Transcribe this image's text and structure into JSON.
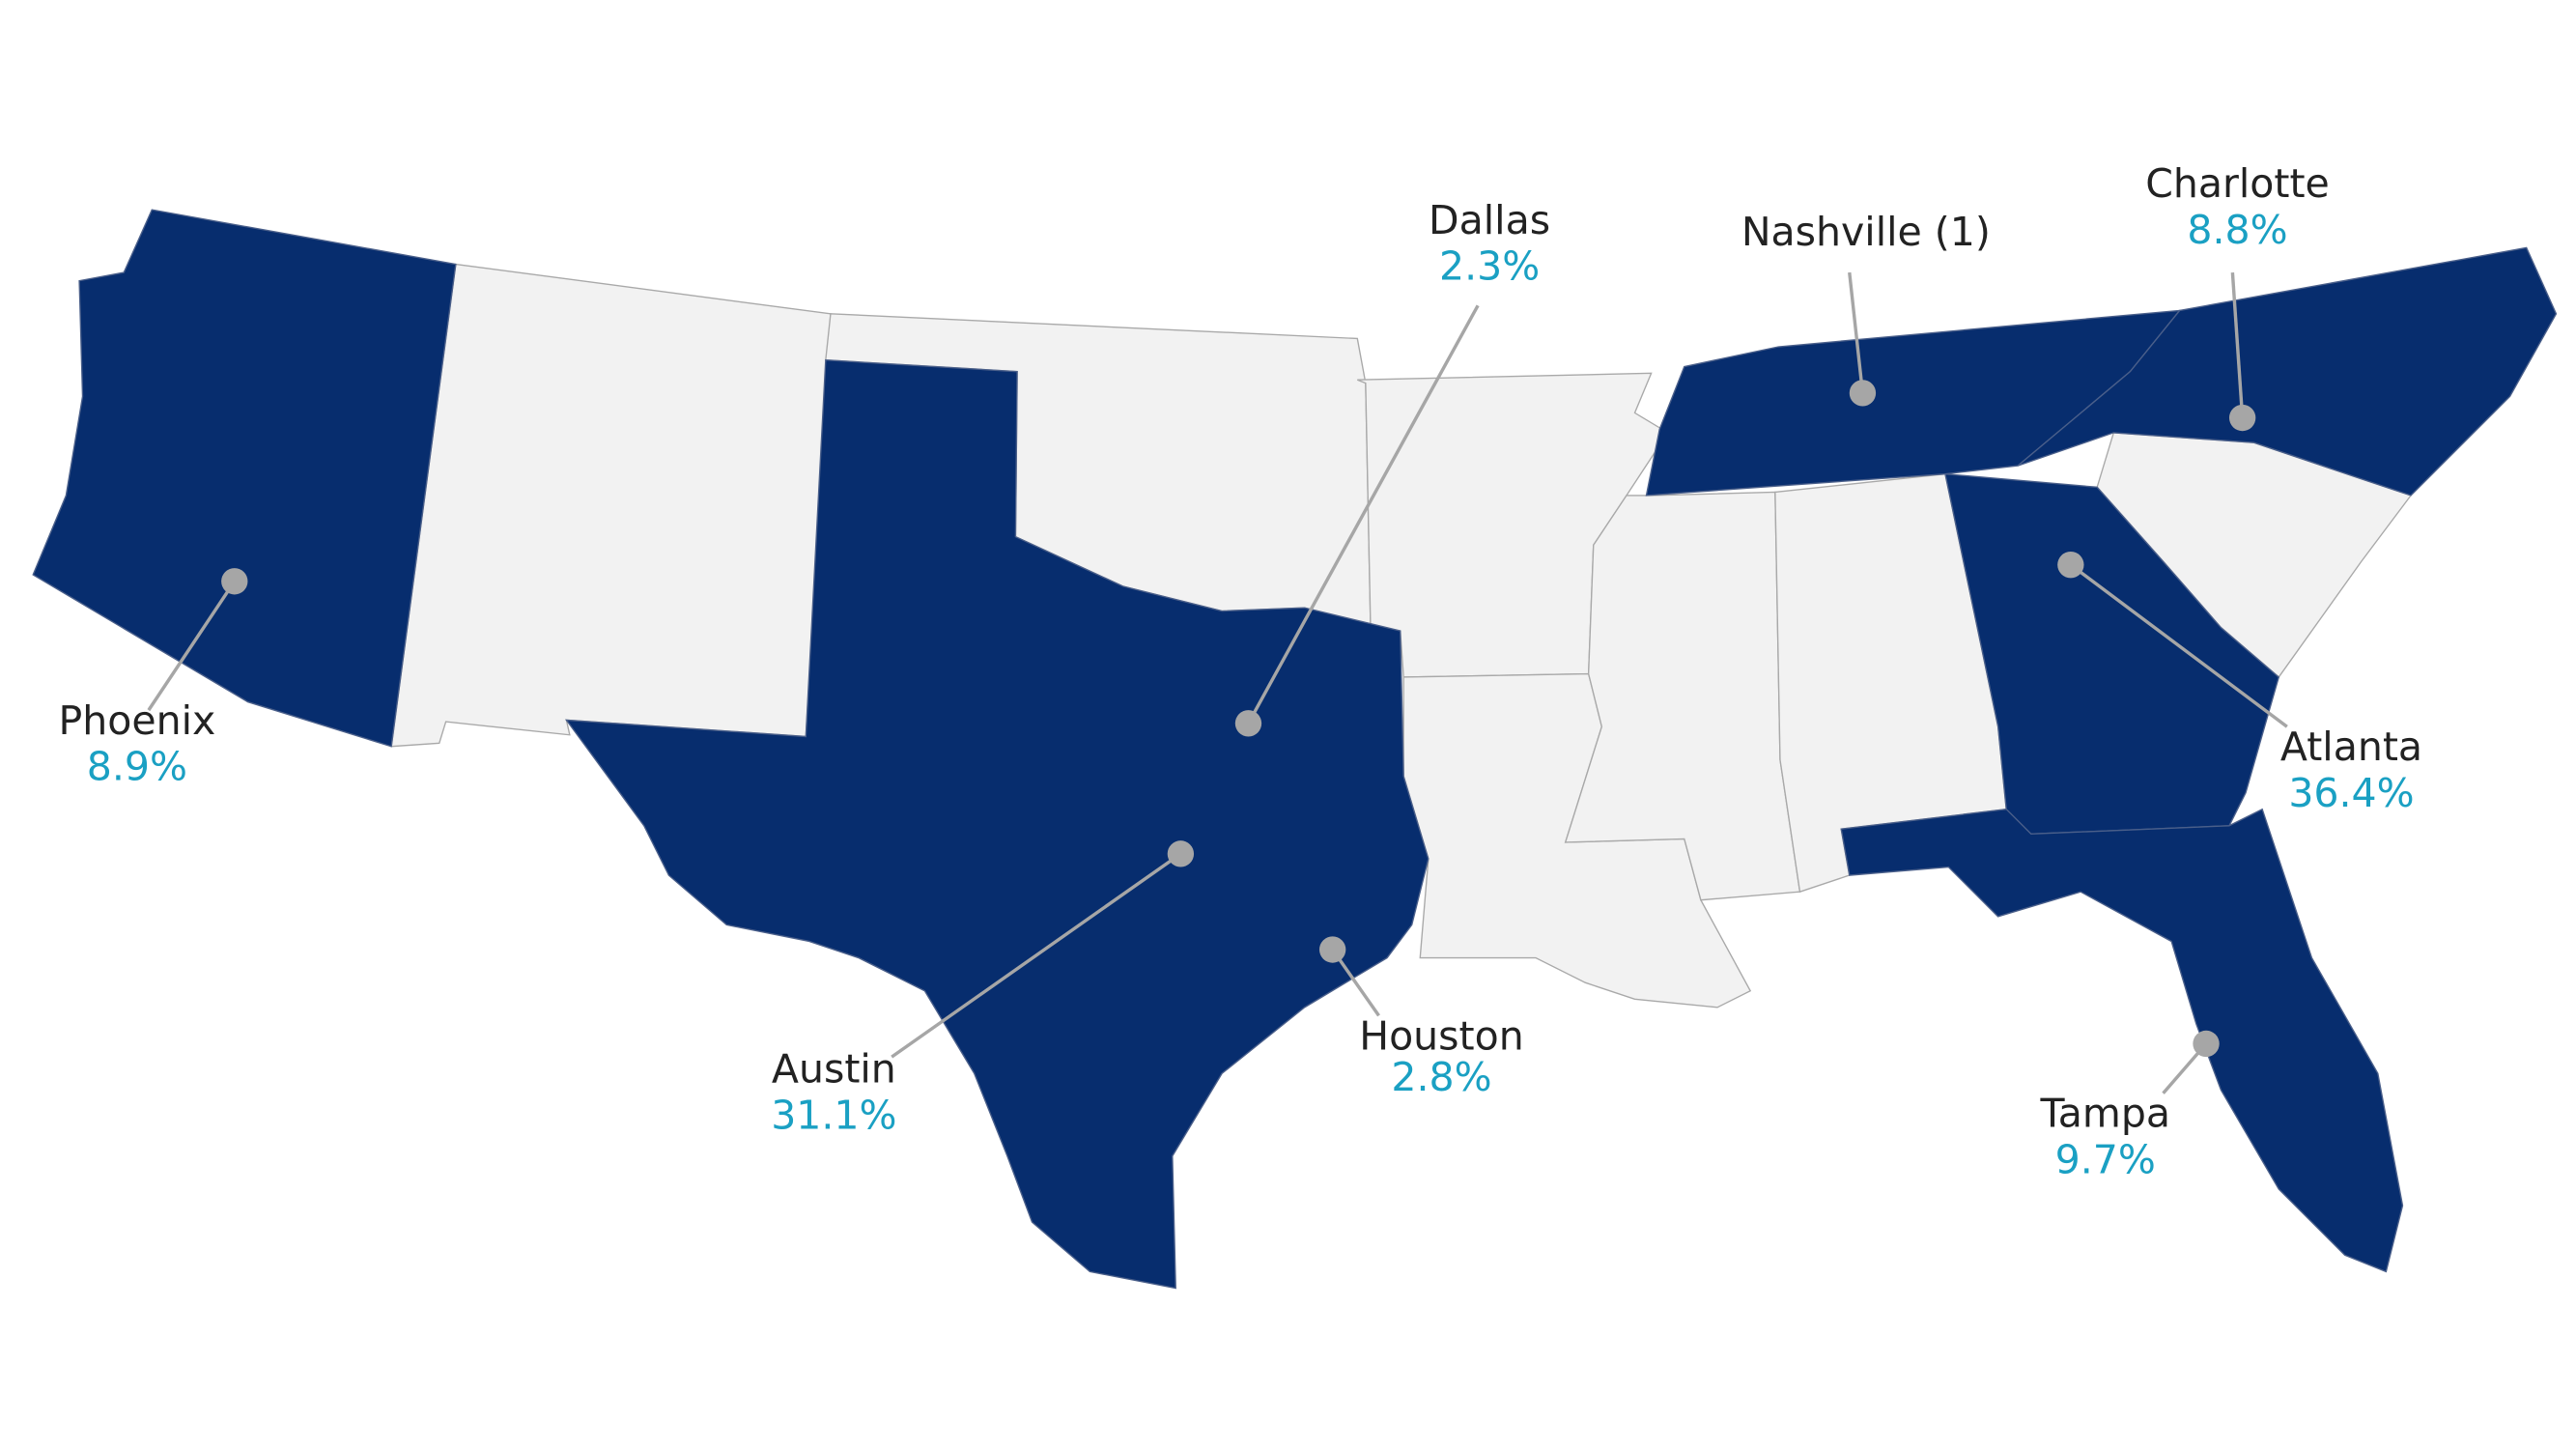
{
  "map": {
    "cities": [
      {
        "name": "Phoenix",
        "share": "8.9%"
      },
      {
        "name": "Dallas",
        "share": "2.3%"
      },
      {
        "name": "Nashville (1)"
      },
      {
        "name": "Charlotte",
        "share": "8.8%"
      },
      {
        "name": "Atlanta",
        "share": "36.4%"
      },
      {
        "name": "Austin",
        "share": "31.1%"
      },
      {
        "name": "Houston",
        "share": "2.8%"
      },
      {
        "name": "Tampa",
        "share": "9.7%"
      }
    ]
  }
}
